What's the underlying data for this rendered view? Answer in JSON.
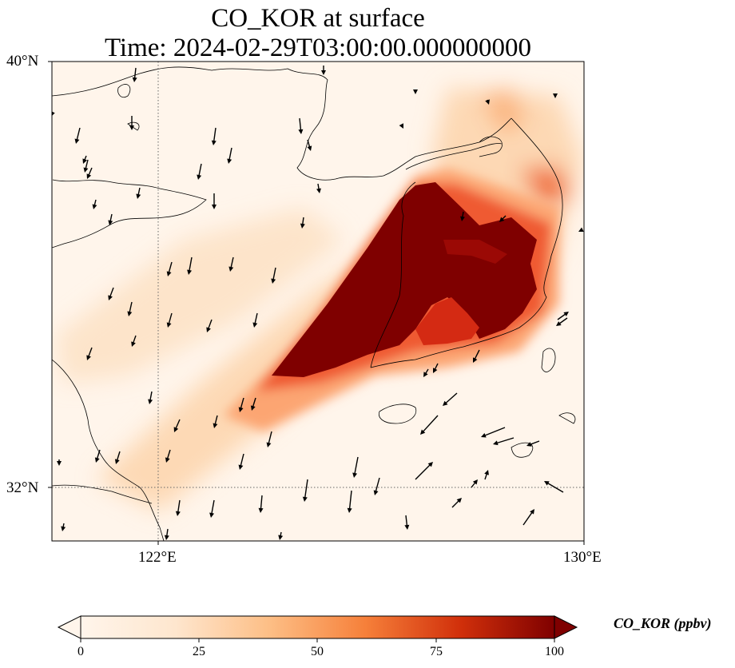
{
  "title": {
    "line1": "CO_KOR at surface",
    "line2": "Time: 2024-02-29T03:00:00.000000000"
  },
  "axes": {
    "lat_labels": [
      "40°N",
      "32°N"
    ],
    "lon_labels": [
      "122°E",
      "130°E"
    ]
  },
  "colorbar": {
    "label": "CO_KOR (ppbv)",
    "ticks": [
      "0",
      "25",
      "50",
      "75",
      "100"
    ],
    "range": [
      0,
      100
    ],
    "extend": "both",
    "colormap": [
      "#fff5eb",
      "#fdd9b2",
      "#fdae6b",
      "#f16913",
      "#c9190b",
      "#7f0000"
    ]
  },
  "map": {
    "extent": {
      "lon": [
        120,
        130
      ],
      "lat": [
        31,
        40
      ]
    },
    "background_color": "#fff5eb",
    "coastline_color": "#000000",
    "gridline_style": "dotted",
    "wind_vectors": "black arrows, predominantly southward flow over Yellow Sea, northeastward near Korea/Japan"
  }
}
